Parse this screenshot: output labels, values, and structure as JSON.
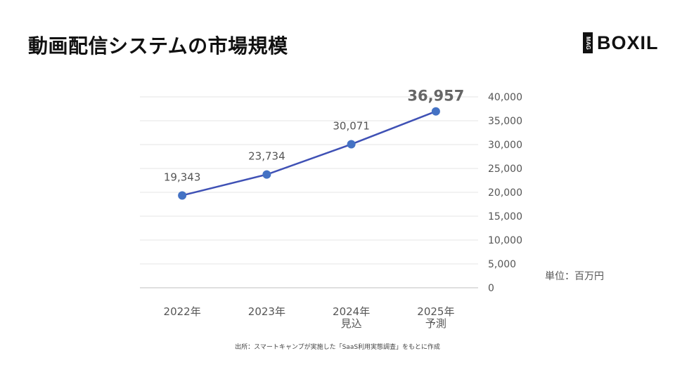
{
  "header": {
    "title": "動画配信システムの市場規模",
    "logo_mag": "MAG",
    "logo_word": "BOXIL"
  },
  "unit_label": "単位：百万円",
  "source_note": "出所：スマートキャンプが実施した「SaaS利用実態調査」をもとに作成",
  "colors": {
    "line": "#3f51b5",
    "point": "#4472c4",
    "grid": "#e6e6e6",
    "axis": "#bfbfbf"
  },
  "chart_data": {
    "type": "line",
    "categories": [
      [
        "2022年"
      ],
      [
        "2023年"
      ],
      [
        "2024年",
        "見込"
      ],
      [
        "2025年",
        "予測"
      ]
    ],
    "values": [
      19343,
      23734,
      30071,
      36957
    ],
    "value_labels": [
      "19,343",
      "23,734",
      "30,071",
      "36,957"
    ],
    "highlight_index": 3,
    "ylim": [
      0,
      40000
    ],
    "y_ticks": [
      "0",
      "5,000",
      "10,000",
      "15,000",
      "20,000",
      "25,000",
      "30,000",
      "35,000",
      "40,000"
    ],
    "y_axis_side": "right",
    "grid": true
  }
}
